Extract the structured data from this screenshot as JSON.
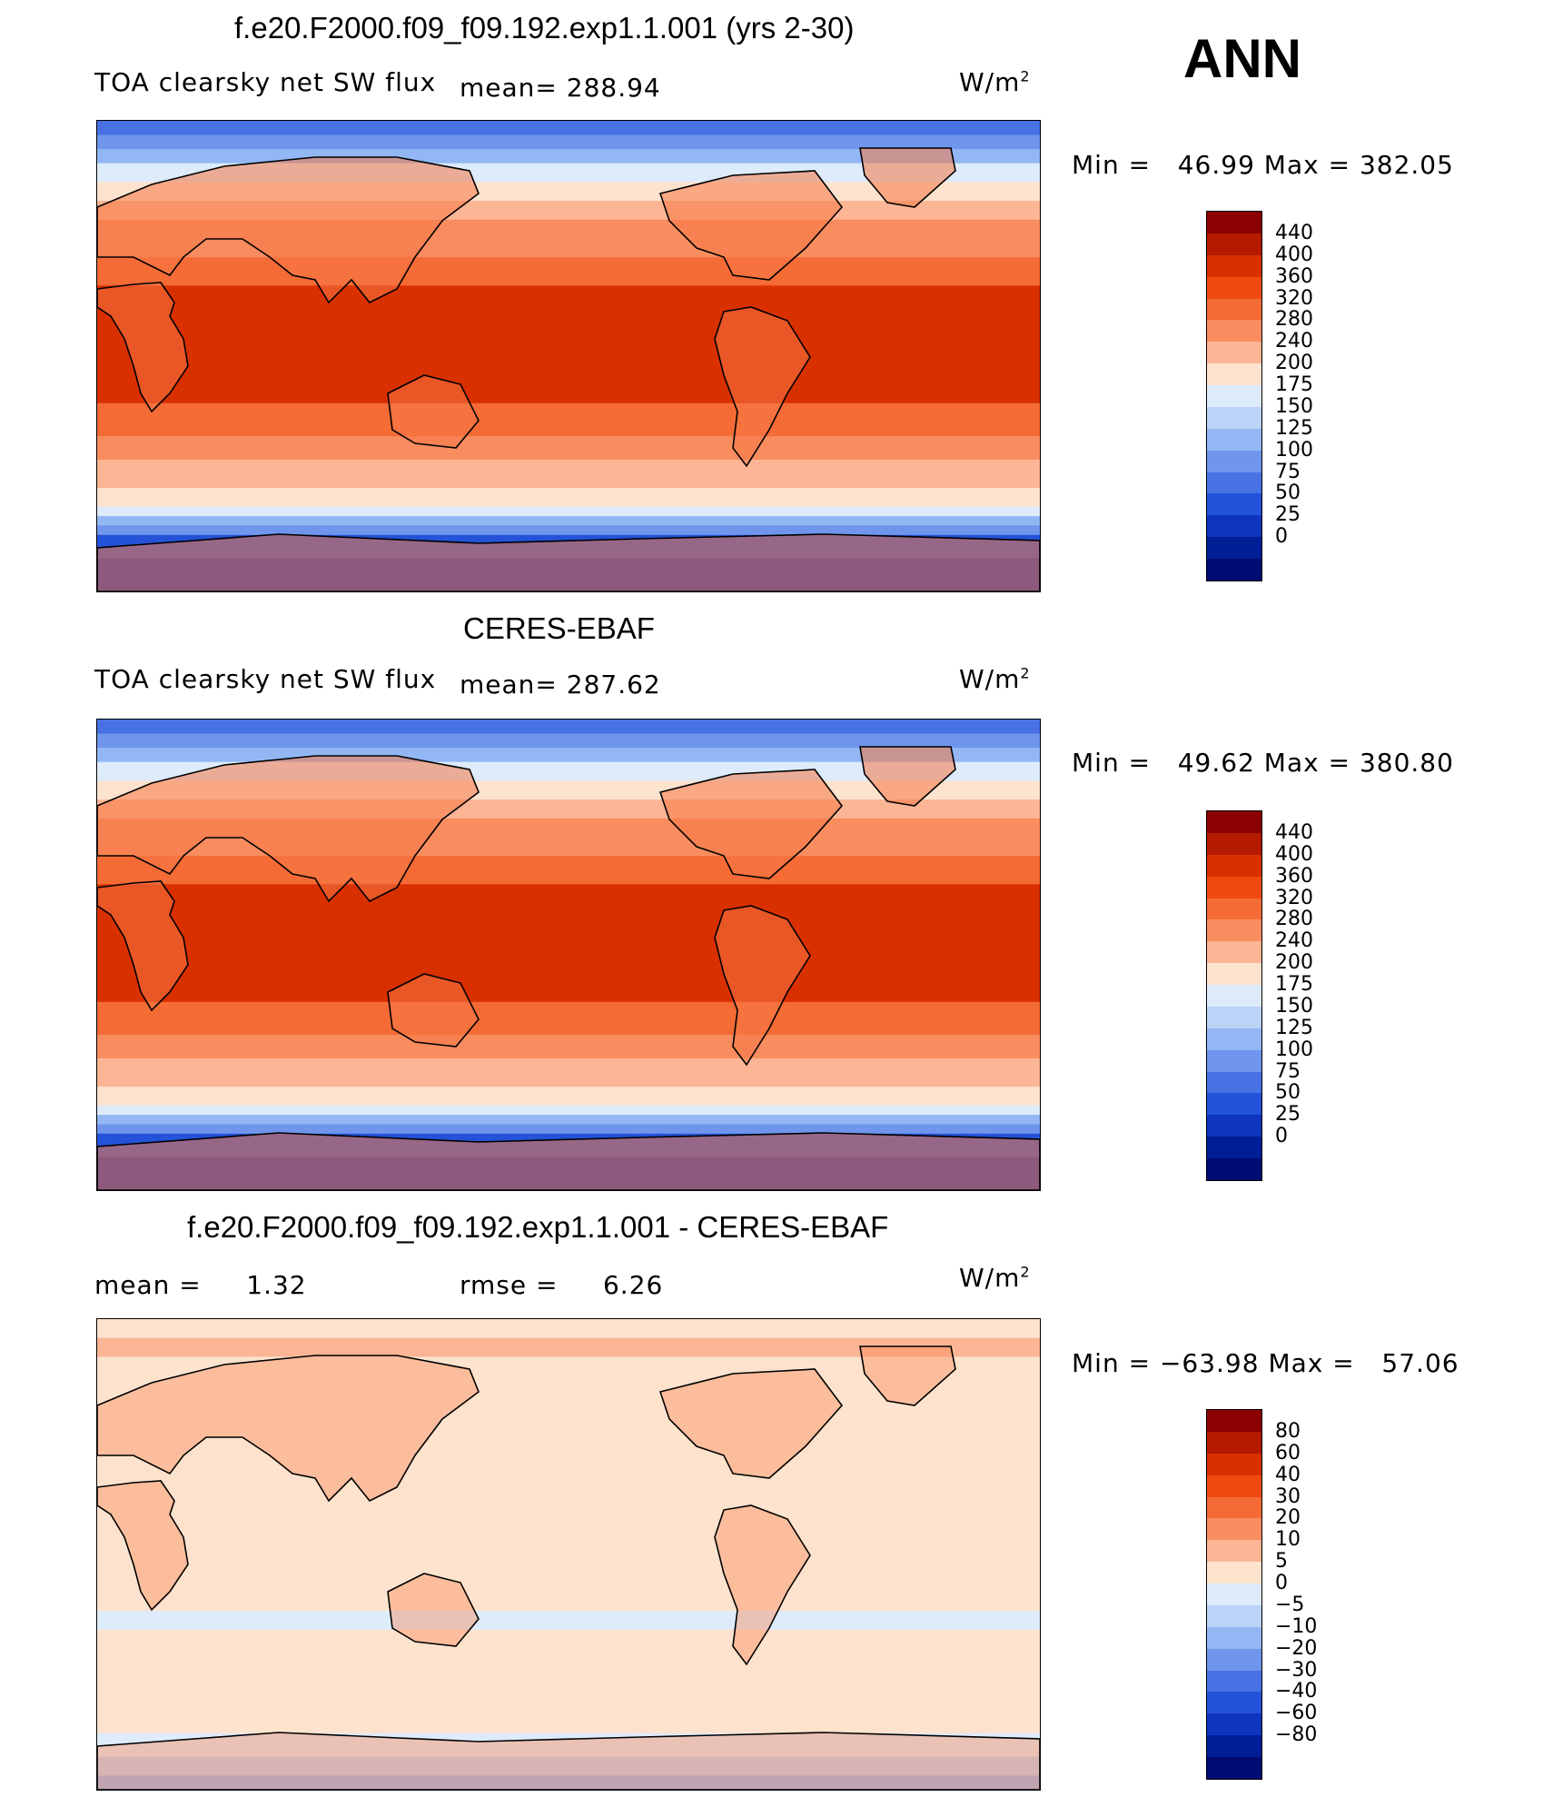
{
  "season": "ANN",
  "panels": [
    {
      "title": "f.e20.F2000.f09_f09.192.exp1.1.001 (yrs 2-30)",
      "variable": "TOA clearsky net SW flux",
      "stat_a": "mean= 288.94",
      "stat_b": "",
      "units": "W/m",
      "units_sup": "2",
      "minmax": "Min =   46.99 Max = 382.05",
      "field": "abs",
      "colorbar": {
        "labels": [
          "440",
          "400",
          "360",
          "320",
          "280",
          "240",
          "200",
          "175",
          "150",
          "125",
          "100",
          "75",
          "50",
          "25",
          "0"
        ],
        "colors": [
          "#8B0000",
          "#B31A00",
          "#D93000",
          "#F04A10",
          "#F56B35",
          "#F98D60",
          "#FCB595",
          "#FDE3CE",
          "#DDEBFB",
          "#BBD3F7",
          "#92B7F4",
          "#6F96EC",
          "#4872E4",
          "#2452D8",
          "#0F34BE",
          "#001F96",
          "#000B73"
        ]
      }
    },
    {
      "title": "CERES-EBAF",
      "variable": "TOA clearsky net SW flux",
      "stat_a": "mean= 287.62",
      "stat_b": "",
      "units": "W/m",
      "units_sup": "2",
      "minmax": "Min =   49.62 Max = 380.80",
      "field": "abs",
      "colorbar": {
        "labels": [
          "440",
          "400",
          "360",
          "320",
          "280",
          "240",
          "200",
          "175",
          "150",
          "125",
          "100",
          "75",
          "50",
          "25",
          "0"
        ],
        "colors": [
          "#8B0000",
          "#B31A00",
          "#D93000",
          "#F04A10",
          "#F56B35",
          "#F98D60",
          "#FCB595",
          "#FDE3CE",
          "#DDEBFB",
          "#BBD3F7",
          "#92B7F4",
          "#6F96EC",
          "#4872E4",
          "#2452D8",
          "#0F34BE",
          "#001F96",
          "#000B73"
        ]
      }
    },
    {
      "title": "f.e20.F2000.f09_f09.192.exp1.1.001 - CERES-EBAF",
      "variable": "",
      "stat_a": "mean =     1.32",
      "stat_b": "rmse =     6.26",
      "units": "W/m",
      "units_sup": "2",
      "minmax": "Min = −63.98 Max =   57.06",
      "field": "diff",
      "colorbar": {
        "labels": [
          "80",
          "60",
          "40",
          "30",
          "20",
          "10",
          "5",
          "0",
          "−5",
          "−10",
          "−20",
          "−30",
          "−40",
          "−60",
          "−80"
        ],
        "colors": [
          "#8B0000",
          "#B31A00",
          "#D93000",
          "#F04A10",
          "#F56B35",
          "#F98D60",
          "#FCB595",
          "#FDE3CE",
          "#DDEBFB",
          "#BBD3F7",
          "#92B7F4",
          "#6F96EC",
          "#4872E4",
          "#2452D8",
          "#0F34BE",
          "#001F96",
          "#000B73"
        ]
      }
    }
  ]
}
